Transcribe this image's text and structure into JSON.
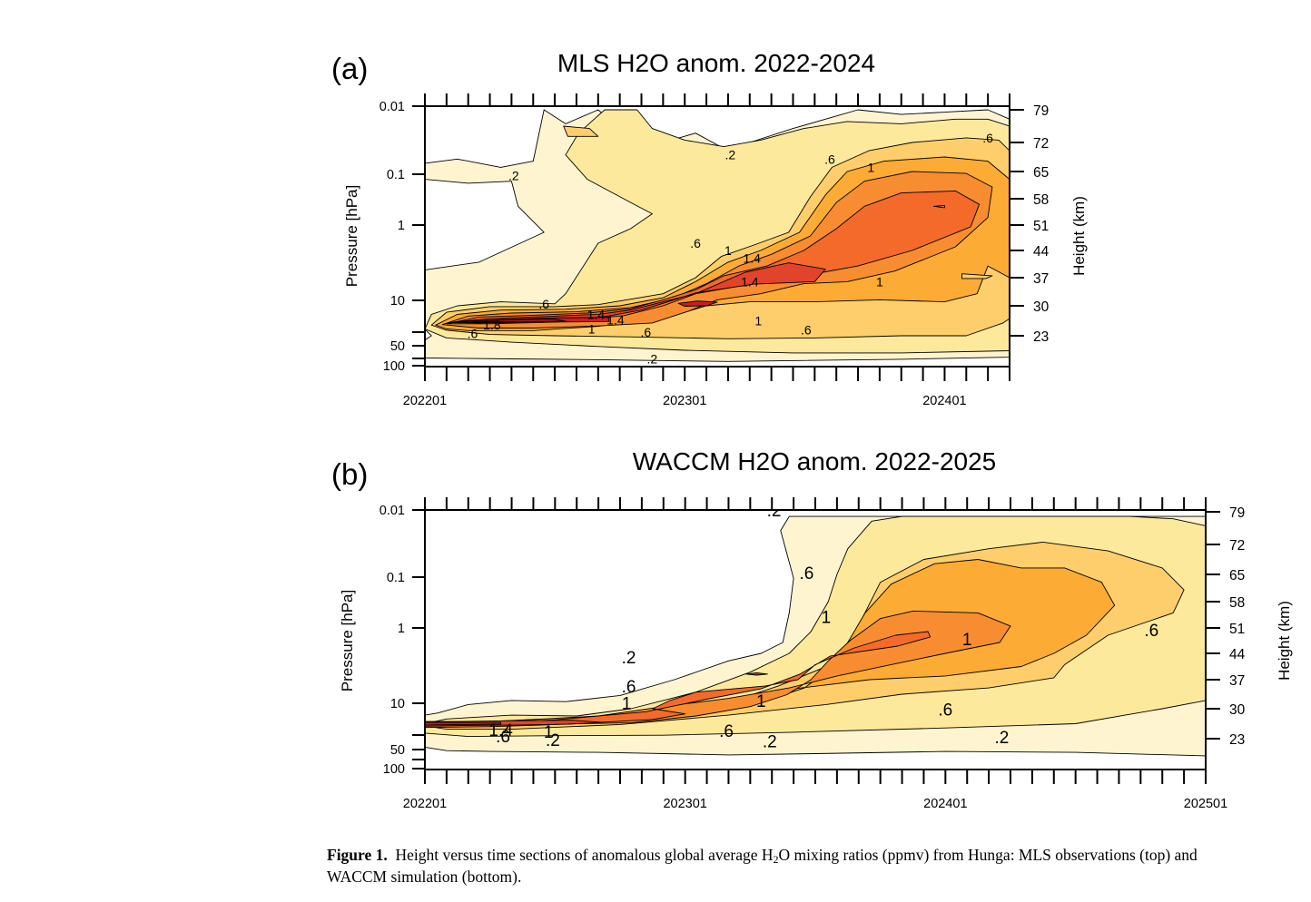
{
  "figure": {
    "caption_label": "Figure 1.",
    "caption_pre": "Height versus time sections of anomalous global average H",
    "caption_sub": "2",
    "caption_post": "O mixing ratios (ppmv) from Hunga: MLS observations (top) and WACCM simulation (bottom)."
  },
  "colors": {
    "levels": [
      0.2,
      0.6,
      1.0,
      1.4,
      1.8
    ],
    "band_fills": [
      "#ffffff",
      "#fef4d0",
      "#fde99c",
      "#fdce6b",
      "#fcab35",
      "#f78d30",
      "#f36a2b",
      "#e2442b",
      "#c81d27",
      "#a80e22"
    ]
  },
  "chart_data": [
    {
      "panel": "(a)",
      "type": "heatmap",
      "subtype": "filled-contour",
      "title": "MLS H2O anom. 2022-2024",
      "xlabel": "",
      "ylabel": "Pressure [hPa]",
      "y2label": "Height (km)",
      "x_ticks": [
        "202201",
        "202301",
        "202401"
      ],
      "x_range_months": [
        0,
        27
      ],
      "y_ticks_pressure": [
        "0.01",
        "0.1",
        "1",
        "10",
        "50",
        "100"
      ],
      "y_ticks_height": [
        "79",
        "72",
        "65",
        "58",
        "51",
        "44",
        "37",
        "30",
        "23"
      ],
      "y_range_km": [
        16,
        80
      ],
      "contour_interval_ppmv": 0.2,
      "contour_labels": [
        {
          "text": ".2",
          "month": 4.1,
          "km": 64
        },
        {
          "text": ".2",
          "month": 14.1,
          "km": 69
        },
        {
          "text": ".6",
          "month": 18.7,
          "km": 68
        },
        {
          "text": ".6",
          "month": 26,
          "km": 73
        },
        {
          "text": "1",
          "month": 20.6,
          "km": 66
        },
        {
          "text": ".6",
          "month": 12.5,
          "km": 46
        },
        {
          "text": "1",
          "month": 14,
          "km": 44
        },
        {
          "text": "1.4",
          "month": 15.1,
          "km": 42
        },
        {
          "text": "1.4",
          "month": 15.0,
          "km": 36
        },
        {
          "text": "1",
          "month": 21,
          "km": 36
        },
        {
          "text": ".6",
          "month": 5.5,
          "km": 30.5
        },
        {
          "text": "1.4",
          "month": 7.9,
          "km": 28
        },
        {
          "text": "1.4",
          "month": 8.8,
          "km": 26.7
        },
        {
          "text": "1.8",
          "month": 3.1,
          "km": 25.5
        },
        {
          "text": ".6",
          "month": 2.2,
          "km": 23.5
        },
        {
          "text": "1",
          "month": 7.7,
          "km": 24.6
        },
        {
          "text": "1",
          "month": 15.4,
          "km": 26.5
        },
        {
          "text": ".6",
          "month": 10.2,
          "km": 23.8
        },
        {
          "text": ".6",
          "month": 17.6,
          "km": 24.4
        },
        {
          "text": ".2",
          "month": 10.5,
          "km": 17.6
        }
      ],
      "max_anomaly_ppmv_approx": 2.0
    },
    {
      "panel": "(b)",
      "type": "heatmap",
      "subtype": "filled-contour",
      "title": "WACCM H2O anom. 2022-2025",
      "xlabel": "",
      "ylabel": "Pressure [hPa]",
      "y2label": "Height (km)",
      "x_ticks": [
        "202201",
        "202301",
        "202401",
        "202501"
      ],
      "x_range_months": [
        0,
        36
      ],
      "y_ticks_pressure": [
        "0.01",
        "0.1",
        "1",
        "10",
        "50",
        "100"
      ],
      "y_ticks_height": [
        "79",
        "72",
        "65",
        "58",
        "51",
        "44",
        "37",
        "30",
        "23"
      ],
      "y_range_km": [
        16,
        80
      ],
      "contour_interval_ppmv": 0.2,
      "contour_labels": [
        {
          "text": ".2",
          "month": 16.1,
          "km": 79
        },
        {
          "text": ".6",
          "month": 17.6,
          "km": 65
        },
        {
          "text": "1",
          "month": 18.5,
          "km": 53.5
        },
        {
          "text": "1",
          "month": 25,
          "km": 47.5
        },
        {
          "text": ".6",
          "month": 33.5,
          "km": 50
        },
        {
          "text": ".2",
          "month": 9.4,
          "km": 42.5
        },
        {
          "text": ".6",
          "month": 9.4,
          "km": 35
        },
        {
          "text": "1",
          "month": 9.3,
          "km": 31
        },
        {
          "text": "1",
          "month": 15.5,
          "km": 31.5
        },
        {
          "text": ".6",
          "month": 24,
          "km": 29.5
        },
        {
          "text": ".6",
          "month": 13.9,
          "km": 24.5
        },
        {
          "text": ".2",
          "month": 15.9,
          "km": 22
        },
        {
          "text": ".2",
          "month": 26.6,
          "km": 23
        },
        {
          "text": "1.4",
          "month": 3.5,
          "km": 24.7
        },
        {
          "text": ".6",
          "month": 3.6,
          "km": 23.2
        },
        {
          "text": "1",
          "month": 5.7,
          "km": 24.3
        },
        {
          "text": ".2",
          "month": 5.9,
          "km": 22.4
        }
      ],
      "max_anomaly_ppmv_approx": 1.8
    }
  ]
}
